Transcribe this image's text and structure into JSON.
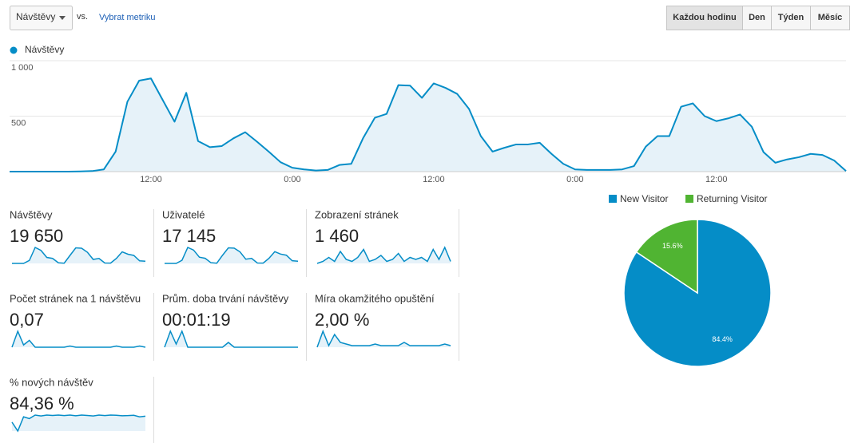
{
  "toolbar": {
    "metric": "Návštěvy",
    "vs": "vs.",
    "select_metric": "Vybrat metriku",
    "periods": [
      "Každou hodinu",
      "Den",
      "Týden",
      "Měsíc"
    ],
    "active_period": 0
  },
  "chart_data": [
    {
      "type": "line",
      "series": [
        {
          "name": "Návštěvy",
          "color": "#058dc7",
          "values": [
            0,
            0,
            0,
            0,
            0,
            0,
            2,
            5,
            20,
            180,
            630,
            820,
            840,
            645,
            450,
            710,
            275,
            220,
            230,
            300,
            355,
            270,
            180,
            85,
            35,
            20,
            10,
            15,
            60,
            70,
            300,
            485,
            520,
            780,
            775,
            665,
            795,
            755,
            700,
            565,
            320,
            180,
            215,
            245,
            245,
            260,
            160,
            70,
            20,
            15,
            15,
            15,
            20,
            50,
            225,
            320,
            320,
            585,
            615,
            500,
            455,
            480,
            515,
            405,
            175,
            80,
            110,
            130,
            160,
            150,
            100,
            5
          ]
        }
      ],
      "categories": [
        null,
        null,
        null,
        null,
        null,
        null,
        null,
        null,
        null,
        null,
        null,
        null,
        "12:00",
        null,
        null,
        null,
        null,
        null,
        null,
        null,
        null,
        null,
        null,
        null,
        "0:00",
        null,
        null,
        null,
        null,
        null,
        null,
        null,
        null,
        null,
        null,
        null,
        "12:00",
        null,
        null,
        null,
        null,
        null,
        null,
        null,
        null,
        null,
        null,
        null,
        "0:00",
        null,
        null,
        null,
        null,
        null,
        null,
        null,
        null,
        null,
        null,
        null,
        "12:00",
        null,
        null,
        null,
        null,
        null,
        null,
        null,
        null,
        null,
        null,
        null
      ],
      "ylim": [
        0,
        1000
      ],
      "yticks": [
        {
          "value": 1000,
          "label": "1 000"
        },
        500
      ],
      "grid": true
    },
    {
      "type": "pie",
      "categories": [
        "New Visitor",
        "Returning Visitor"
      ],
      "values": [
        84.4,
        15.6
      ],
      "value_labels": [
        "84.4%",
        "15.6%"
      ],
      "colors": [
        "#058dc7",
        "#50b432"
      ],
      "legend": "top"
    }
  ],
  "metrics": [
    {
      "label": "Návštěvy",
      "value": "19 650",
      "sparkline": [
        0,
        0,
        0,
        150,
        800,
        650,
        300,
        250,
        30,
        10,
        400,
        780,
        760,
        560,
        200,
        250,
        20,
        15,
        250,
        580,
        460,
        400,
        130,
        110
      ]
    },
    {
      "label": "Uživatelé",
      "value": "17 145",
      "sparkline": [
        0,
        0,
        0,
        140,
        720,
        600,
        280,
        230,
        30,
        10,
        370,
        700,
        690,
        520,
        190,
        230,
        20,
        15,
        230,
        530,
        420,
        370,
        120,
        100
      ]
    },
    {
      "label": "Zobrazení stránek",
      "value": "1 460",
      "sparkline": [
        2,
        3,
        5,
        3,
        8,
        4,
        3,
        5,
        9,
        3,
        4,
        6,
        3,
        4,
        7,
        3,
        5,
        4,
        5,
        3,
        9,
        4,
        10,
        3
      ]
    },
    {
      "label": "Počet stránek na 1 návštěvu",
      "value": "0,07",
      "sparkline": [
        1,
        8,
        2,
        4,
        1,
        1,
        1,
        1,
        1,
        1,
        1.5,
        1,
        1,
        1,
        1,
        1,
        1,
        1,
        1.5,
        1,
        1,
        1,
        1.5,
        1
      ]
    },
    {
      "label": "Prům. doba trvání návštěvy",
      "value": "00:01:19",
      "sparkline": [
        0,
        10,
        2,
        10,
        0,
        0,
        0,
        0,
        0,
        0,
        0,
        3,
        0,
        0,
        0,
        0,
        0,
        0,
        0,
        0,
        0,
        0,
        0,
        0
      ]
    },
    {
      "label": "Míra okamžitého opuštění",
      "value": "2,00 %",
      "sparkline": [
        0,
        10,
        1,
        8,
        3,
        2,
        1,
        1,
        1,
        1,
        2,
        1,
        1,
        1,
        1,
        3,
        1,
        1,
        1,
        1,
        1,
        1,
        2,
        1
      ]
    },
    {
      "label": "% nových návštěv",
      "value": "84,36 %",
      "sparkline": [
        5,
        0,
        8,
        7,
        9,
        8.5,
        9,
        8.8,
        9,
        8.7,
        9,
        8.6,
        9,
        8.8,
        8.5,
        9,
        8.7,
        9,
        8.9,
        8.6,
        8.7,
        8.9,
        8,
        8.4
      ]
    }
  ]
}
